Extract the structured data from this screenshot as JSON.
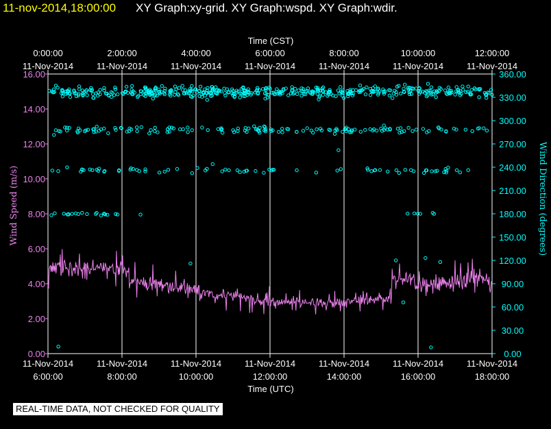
{
  "header": {
    "timestamp": "11-nov-2014,18:00:00",
    "graphs": "XY Graph:xy-grid.  XY Graph:wspd.  XY Graph:wdir."
  },
  "footer_note": "REAL-TIME DATA, NOT CHECKED FOR QUALITY",
  "colors": {
    "speed": "#ee82ee",
    "direction": "#00ffff",
    "header_time": "#ffff00",
    "text": "#ffffff",
    "grid": "#ffffff",
    "background": "#000000"
  },
  "chart_data": {
    "type": "scatter",
    "x_range": [
      0,
      12
    ],
    "top_axis": {
      "title": "Time (CST)",
      "ticks": [
        {
          "time": "0:00:00",
          "date": "11-Nov-2014"
        },
        {
          "time": "2:00:00",
          "date": "11-Nov-2014"
        },
        {
          "time": "4:00:00",
          "date": "11-Nov-2014"
        },
        {
          "time": "6:00:00",
          "date": "11-Nov-2014"
        },
        {
          "time": "8:00:00",
          "date": "11-Nov-2014"
        },
        {
          "time": "10:00:00",
          "date": "11-Nov-2014"
        },
        {
          "time": "12:00:00",
          "date": "11-Nov-2014"
        }
      ]
    },
    "bottom_axis": {
      "title": "Time (UTC)",
      "ticks": [
        {
          "date": "11-Nov-2014",
          "time": "6:00:00"
        },
        {
          "date": "11-Nov-2014",
          "time": "8:00:00"
        },
        {
          "date": "11-Nov-2014",
          "time": "10:00:00"
        },
        {
          "date": "11-Nov-2014",
          "time": "12:00:00"
        },
        {
          "date": "11-Nov-2014",
          "time": "14:00:00"
        },
        {
          "date": "11-Nov-2014",
          "time": "16:00:00"
        },
        {
          "date": "11-Nov-2014",
          "time": "18:00:00"
        }
      ]
    },
    "left_axis": {
      "label": "Wind Speed (m/s)",
      "range": [
        0,
        16
      ],
      "ticks": [
        "0.00",
        "2.00",
        "4.00",
        "6.00",
        "8.00",
        "10.00",
        "12.00",
        "14.00",
        "16.00"
      ]
    },
    "right_axis": {
      "label": "Wind Direction (degrees)",
      "range": [
        0,
        360
      ],
      "ticks": [
        "0.00",
        "30.00",
        "60.00",
        "90.00",
        "120.00",
        "150.00",
        "180.00",
        "210.00",
        "240.00",
        "270.00",
        "300.00",
        "330.00",
        "360.00"
      ]
    },
    "series": [
      {
        "name": "Wind Speed",
        "type": "line",
        "axis": "left",
        "segments": [
          {
            "t_start": 0,
            "t_end": 2,
            "mean_start": 4.9,
            "mean_end": 4.9,
            "amplitude": 0.75
          },
          {
            "t_start": 2,
            "t_end": 2.2,
            "mean_start": 4.9,
            "mean_end": 4.4,
            "amplitude": 0.7
          },
          {
            "t_start": 2.2,
            "t_end": 4,
            "mean_start": 4.2,
            "mean_end": 3.6,
            "amplitude": 0.7
          },
          {
            "t_start": 4,
            "t_end": 6,
            "mean_start": 3.5,
            "mean_end": 3.0,
            "amplitude": 0.55
          },
          {
            "t_start": 6,
            "t_end": 8,
            "mean_start": 3.0,
            "mean_end": 2.9,
            "amplitude": 0.45
          },
          {
            "t_start": 8,
            "t_end": 9.3,
            "mean_start": 2.9,
            "mean_end": 3.2,
            "amplitude": 0.5
          },
          {
            "t_start": 9.3,
            "t_end": 9.9,
            "mean_start": 4.3,
            "mean_end": 4.3,
            "amplitude": 0.8
          },
          {
            "t_start": 9.9,
            "t_end": 12,
            "mean_start": 3.9,
            "mean_end": 4.2,
            "amplitude": 0.8
          }
        ],
        "samples_per_hour": 60
      },
      {
        "name": "Wind Direction",
        "type": "scatter",
        "axis": "right",
        "clusters": [
          {
            "center": 337,
            "spread": 7,
            "count": 480,
            "t_start": 0,
            "t_end": 12
          },
          {
            "center": 288,
            "spread": 4,
            "count": 150,
            "t_start": 0,
            "t_end": 12
          },
          {
            "center": 236,
            "spread": 3,
            "count": 75,
            "t_start": 0,
            "t_end": 12
          },
          {
            "center": 180,
            "spread": 2,
            "count": 20,
            "t_start": 0,
            "t_end": 2
          },
          {
            "center": 180,
            "spread": 2,
            "count": 6,
            "t_start": 9.7,
            "t_end": 10.6
          }
        ],
        "outliers": [
          {
            "t": 0.28,
            "dir": 9
          },
          {
            "t": 2.5,
            "dir": 179
          },
          {
            "t": 3.85,
            "dir": 116
          },
          {
            "t": 9.6,
            "dir": 66
          },
          {
            "t": 10.35,
            "dir": 8
          },
          {
            "t": 9.4,
            "dir": 120
          },
          {
            "t": 10.2,
            "dir": 123
          },
          {
            "t": 10.6,
            "dir": 118
          },
          {
            "t": 7.85,
            "dir": 262
          },
          {
            "t": 7.75,
            "dir": 283
          },
          {
            "t": 4.45,
            "dir": 244
          }
        ]
      }
    ]
  }
}
